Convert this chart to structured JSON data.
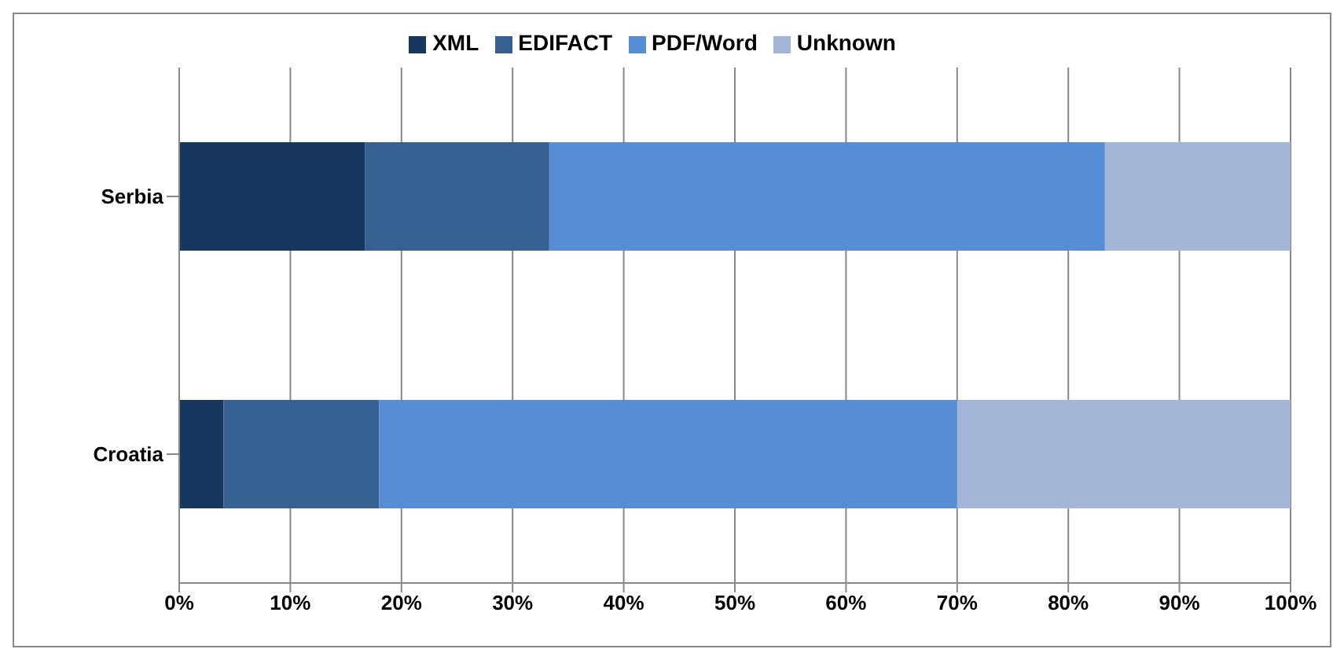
{
  "chart_data": {
    "type": "bar",
    "orientation": "horizontal",
    "stacked": true,
    "categories": [
      "Serbia",
      "Croatia"
    ],
    "series": [
      {
        "name": "XML",
        "color": "#17375e",
        "values": [
          16.7,
          4
        ]
      },
      {
        "name": "EDIFACT",
        "color": "#376092",
        "values": [
          16.6,
          14
        ]
      },
      {
        "name": "PDF/Word",
        "color": "#558ed5",
        "values": [
          50,
          52
        ]
      },
      {
        "name": "Unknown",
        "color": "#a3b6d8",
        "values": [
          16.7,
          30
        ]
      }
    ],
    "xlim": [
      0,
      100
    ],
    "xticks": [
      {
        "value": 0,
        "label": "0%"
      },
      {
        "value": 10,
        "label": "10%"
      },
      {
        "value": 20,
        "label": "20%"
      },
      {
        "value": 30,
        "label": "30%"
      },
      {
        "value": 40,
        "label": "40%"
      },
      {
        "value": 50,
        "label": "50%"
      },
      {
        "value": 60,
        "label": "60%"
      },
      {
        "value": 70,
        "label": "70%"
      },
      {
        "value": 80,
        "label": "80%"
      },
      {
        "value": 90,
        "label": "90%"
      },
      {
        "value": 100,
        "label": "100%"
      }
    ],
    "grid": "x",
    "legend": "top"
  }
}
